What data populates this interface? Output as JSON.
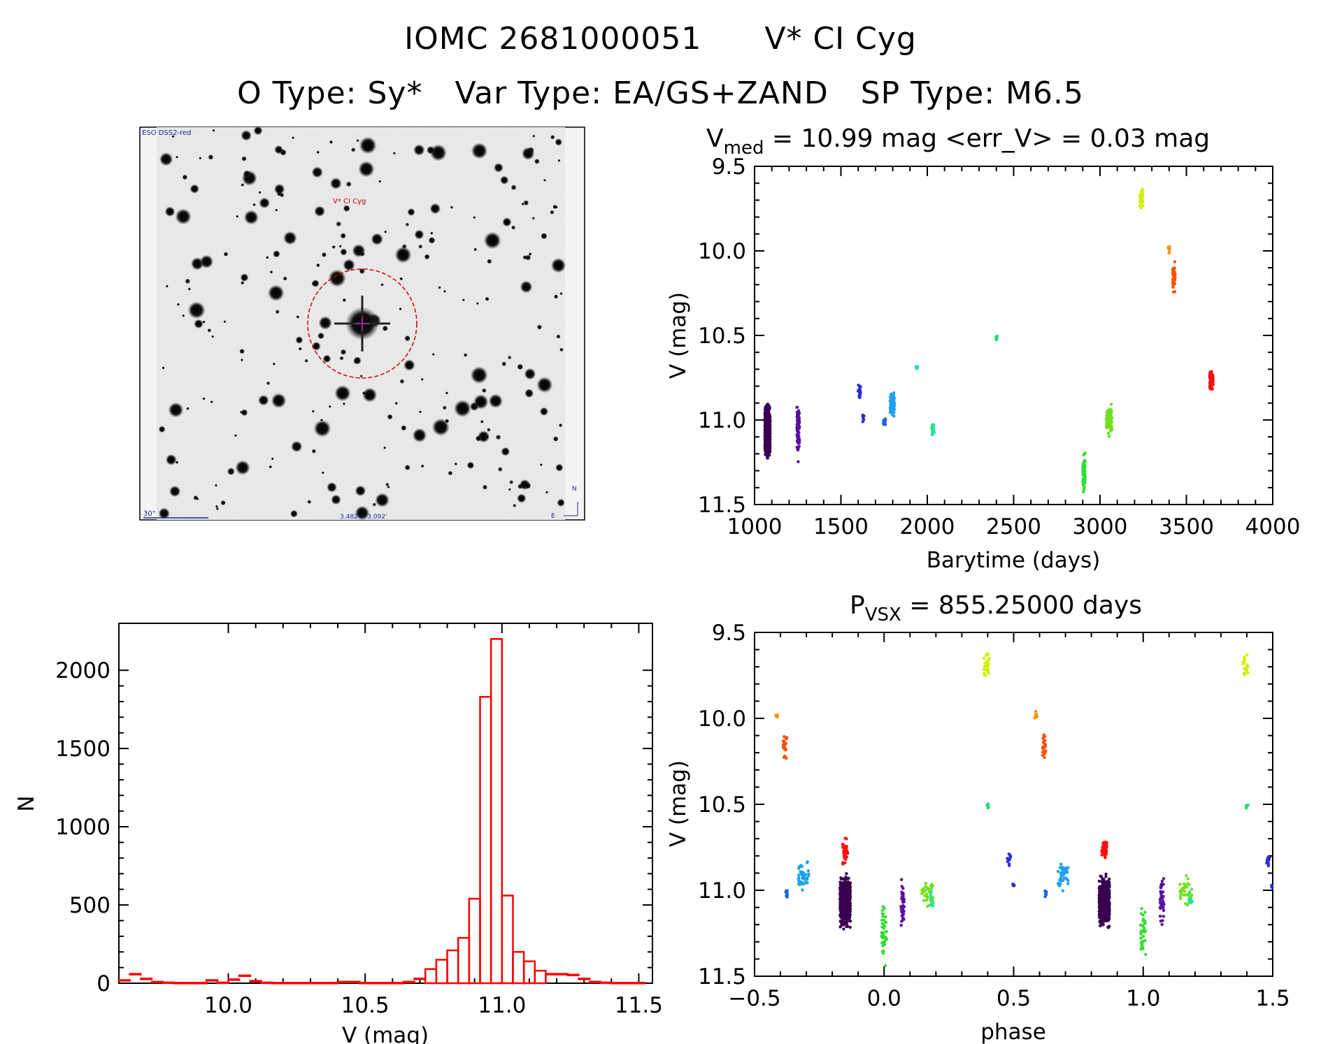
{
  "header": {
    "line1_id": "IOMC 2681000051",
    "line1_name": "V* CI Cyg",
    "otype": "O Type: Sy*",
    "vartype": "Var Type: EA/GS+ZAND",
    "sptype": "SP Type: M6.5"
  },
  "finder": {
    "survey_label": "ESO DSS2-red",
    "target_label": "V* CI Cyg",
    "scale_label": "30\"",
    "size_label": "3.482' x 3.092'",
    "north_label": "N",
    "east_label": "E"
  },
  "colors": {
    "histogram": "#ff0000",
    "finder_circle": "#cc0000"
  },
  "chart_data": [
    {
      "type": "scatter",
      "title_main": "V",
      "title_sub": "med",
      "title_rest": " = 10.99 mag <err_V> = 0.03 mag",
      "xlabel": "Barytime (days)",
      "ylabel": "V (mag)",
      "xlim": [
        1000,
        4000
      ],
      "ylim": [
        11.5,
        9.5
      ],
      "y_inverted": true,
      "xticks": [
        "1000",
        "1500",
        "2000",
        "2500",
        "3000",
        "3500",
        "4000"
      ],
      "yticks": [
        "9.5",
        "10.0",
        "10.5",
        "11.0",
        "11.5"
      ],
      "series": [
        {
          "color": "#3a0050",
          "x": [
            1060,
            1090
          ],
          "y": [
            10.88,
            11.25
          ],
          "n": 900
        },
        {
          "color": "#5a10a0",
          "x": [
            1245,
            1260
          ],
          "y": [
            10.85,
            11.28
          ],
          "n": 80
        },
        {
          "color": "#2a30d8",
          "x": [
            1600,
            1615
          ],
          "y": [
            10.78,
            10.88
          ],
          "n": 25
        },
        {
          "color": "#2a30d8",
          "x": [
            1625,
            1635
          ],
          "y": [
            10.95,
            11.02
          ],
          "n": 10
        },
        {
          "color": "#2060e8",
          "x": [
            1745,
            1760
          ],
          "y": [
            10.98,
            11.05
          ],
          "n": 15
        },
        {
          "color": "#20a0f0",
          "x": [
            1785,
            1810
          ],
          "y": [
            10.8,
            11.02
          ],
          "n": 60
        },
        {
          "color": "#20d8c8",
          "x": [
            1935,
            1945
          ],
          "y": [
            10.67,
            10.71
          ],
          "n": 8
        },
        {
          "color": "#20e890",
          "x": [
            2025,
            2040
          ],
          "y": [
            11.0,
            11.12
          ],
          "n": 20
        },
        {
          "color": "#20e070",
          "x": [
            2395,
            2405
          ],
          "y": [
            10.49,
            10.54
          ],
          "n": 8
        },
        {
          "color": "#30e030",
          "x": [
            2900,
            2915
          ],
          "y": [
            11.15,
            11.47
          ],
          "n": 70
        },
        {
          "color": "#70e020",
          "x": [
            3035,
            3070
          ],
          "y": [
            10.88,
            11.13
          ],
          "n": 70
        },
        {
          "color": "#d0f000",
          "x": [
            3230,
            3250
          ],
          "y": [
            9.6,
            9.79
          ],
          "n": 40
        },
        {
          "color": "#ff9000",
          "x": [
            3395,
            3405
          ],
          "y": [
            9.95,
            10.02
          ],
          "n": 10
        },
        {
          "color": "#ff5000",
          "x": [
            3420,
            3435
          ],
          "y": [
            10.05,
            10.27
          ],
          "n": 40
        },
        {
          "color": "#ff1010",
          "x": [
            3635,
            3655
          ],
          "y": [
            10.68,
            10.86
          ],
          "n": 60
        }
      ]
    },
    {
      "type": "scatter",
      "title_main": "P",
      "title_sub": "VSX",
      "title_rest": " = 855.25000 days",
      "xlabel": "phase",
      "ylabel": "V (mag)",
      "xlim": [
        -0.5,
        1.5
      ],
      "ylim": [
        11.5,
        9.5
      ],
      "y_inverted": true,
      "xticks": [
        "−0.5",
        "0.0",
        "0.5",
        "1.0",
        "1.5"
      ],
      "yticks": [
        "9.5",
        "10.0",
        "10.5",
        "11.0",
        "11.5"
      ],
      "series": [
        {
          "color": "#3a0050",
          "x": [
            -0.17,
            -0.13
          ],
          "y": [
            10.88,
            11.25
          ],
          "n": 500
        },
        {
          "color": "#3a0050",
          "x": [
            0.83,
            0.87
          ],
          "y": [
            10.88,
            11.25
          ],
          "n": 500
        },
        {
          "color": "#5a10a0",
          "x": [
            0.065,
            0.08
          ],
          "y": [
            10.85,
            11.28
          ],
          "n": 40
        },
        {
          "color": "#5a10a0",
          "x": [
            1.065,
            1.08
          ],
          "y": [
            10.85,
            11.28
          ],
          "n": 40
        },
        {
          "color": "#2a30d8",
          "x": [
            0.475,
            0.49
          ],
          "y": [
            10.78,
            10.88
          ],
          "n": 12
        },
        {
          "color": "#2a30d8",
          "x": [
            1.475,
            1.49
          ],
          "y": [
            10.78,
            10.88
          ],
          "n": 12
        },
        {
          "color": "#2a30d8",
          "x": [
            0.495,
            0.505
          ],
          "y": [
            10.95,
            11.0
          ],
          "n": 5
        },
        {
          "color": "#2a30d8",
          "x": [
            1.495,
            1.5
          ],
          "y": [
            10.95,
            11.0
          ],
          "n": 5
        },
        {
          "color": "#2060e8",
          "x": [
            -0.38,
            -0.37
          ],
          "y": [
            10.98,
            11.05
          ],
          "n": 8
        },
        {
          "color": "#2060e8",
          "x": [
            0.62,
            0.63
          ],
          "y": [
            10.98,
            11.05
          ],
          "n": 8
        },
        {
          "color": "#20a0f0",
          "x": [
            -0.33,
            -0.29
          ],
          "y": [
            10.8,
            11.02
          ],
          "n": 40
        },
        {
          "color": "#20a0f0",
          "x": [
            0.67,
            0.71
          ],
          "y": [
            10.8,
            11.02
          ],
          "n": 40
        },
        {
          "color": "#20e890",
          "x": [
            0.175,
            0.19
          ],
          "y": [
            10.98,
            11.12
          ],
          "n": 15
        },
        {
          "color": "#20e890",
          "x": [
            1.175,
            1.19
          ],
          "y": [
            10.98,
            11.12
          ],
          "n": 15
        },
        {
          "color": "#20e070",
          "x": [
            0.395,
            0.405
          ],
          "y": [
            10.49,
            10.54
          ],
          "n": 5
        },
        {
          "color": "#20e070",
          "x": [
            1.395,
            1.405
          ],
          "y": [
            10.49,
            10.54
          ],
          "n": 5
        },
        {
          "color": "#30e030",
          "x": [
            -0.01,
            0.01
          ],
          "y": [
            11.0,
            11.47
          ],
          "n": 40
        },
        {
          "color": "#30e030",
          "x": [
            0.99,
            1.01
          ],
          "y": [
            11.0,
            11.47
          ],
          "n": 40
        },
        {
          "color": "#70e020",
          "x": [
            0.14,
            0.19
          ],
          "y": [
            10.9,
            11.12
          ],
          "n": 30
        },
        {
          "color": "#70e020",
          "x": [
            1.14,
            1.19
          ],
          "y": [
            10.9,
            11.12
          ],
          "n": 30
        },
        {
          "color": "#d0f000",
          "x": [
            0.385,
            0.405
          ],
          "y": [
            9.6,
            9.79
          ],
          "n": 25
        },
        {
          "color": "#d0f000",
          "x": [
            1.385,
            1.405
          ],
          "y": [
            9.6,
            9.79
          ],
          "n": 25
        },
        {
          "color": "#ff9000",
          "x": [
            -0.42,
            -0.41
          ],
          "y": [
            9.95,
            10.02
          ],
          "n": 6
        },
        {
          "color": "#ff9000",
          "x": [
            0.58,
            0.59
          ],
          "y": [
            9.95,
            10.02
          ],
          "n": 6
        },
        {
          "color": "#ff5000",
          "x": [
            -0.39,
            -0.375
          ],
          "y": [
            10.05,
            10.27
          ],
          "n": 25
        },
        {
          "color": "#ff5000",
          "x": [
            0.61,
            0.625
          ],
          "y": [
            10.05,
            10.27
          ],
          "n": 25
        },
        {
          "color": "#ff1010",
          "x": [
            -0.16,
            -0.14
          ],
          "y": [
            10.68,
            10.86
          ],
          "n": 40
        },
        {
          "color": "#ff1010",
          "x": [
            0.84,
            0.86
          ],
          "y": [
            10.68,
            10.86
          ],
          "n": 40
        }
      ]
    },
    {
      "type": "bar",
      "histogram": true,
      "xlabel": "V (mag)",
      "ylabel": "N",
      "xlim": [
        9.6,
        11.55
      ],
      "ylim": [
        0,
        2300
      ],
      "xticks": [
        "10.0",
        "10.5",
        "11.0",
        "11.5"
      ],
      "yticks": [
        "0",
        "500",
        "1000",
        "1500",
        "2000"
      ],
      "bin_width": 0.04,
      "bin_start": 9.6,
      "counts": [
        20,
        60,
        30,
        10,
        5,
        3,
        3,
        3,
        20,
        5,
        25,
        50,
        15,
        5,
        3,
        3,
        3,
        3,
        3,
        3,
        10,
        10,
        3,
        3,
        3,
        3,
        10,
        30,
        90,
        150,
        210,
        290,
        540,
        1830,
        2200,
        560,
        200,
        140,
        80,
        60,
        60,
        55,
        30,
        10,
        5,
        3,
        3,
        3
      ]
    }
  ]
}
